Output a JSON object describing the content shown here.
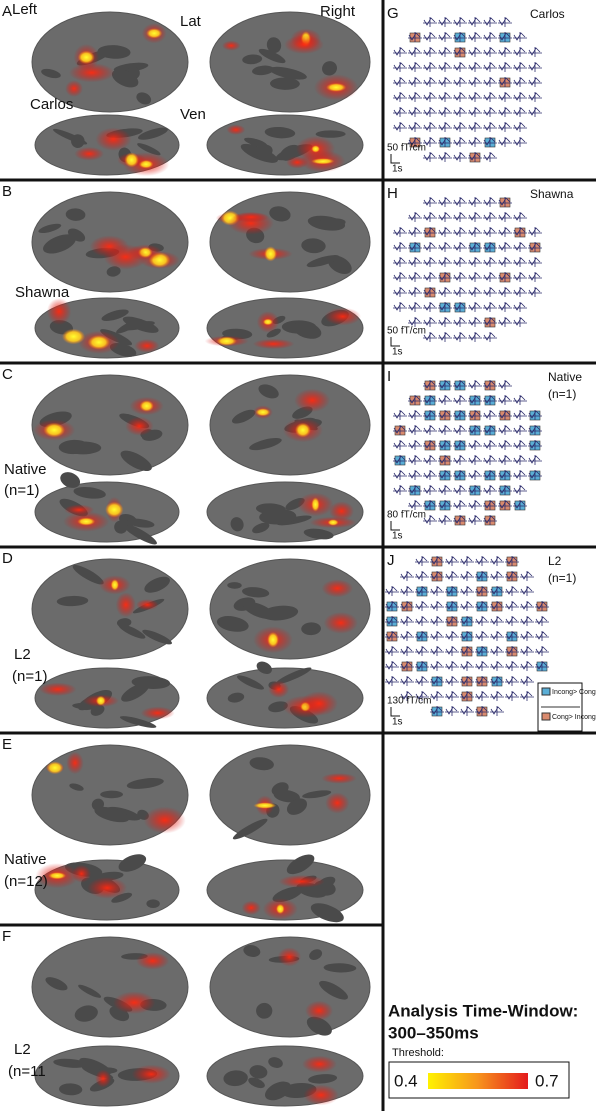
{
  "panels": [
    {
      "letter": "A",
      "labels": [
        "Left",
        "Lat",
        "Right",
        "Carlos",
        "Ven"
      ]
    },
    {
      "letter": "B",
      "labels": [
        "Shawna"
      ]
    },
    {
      "letter": "C",
      "labels": [
        "Native",
        "(n=1)"
      ]
    },
    {
      "letter": "D",
      "labels": [
        "L2",
        "(n=1)"
      ]
    },
    {
      "letter": "E",
      "labels": [
        "Native",
        "(n=12)"
      ]
    },
    {
      "letter": "F",
      "labels": [
        "L2",
        "(n=11"
      ]
    }
  ],
  "sensor_panels": [
    {
      "letter": "G",
      "labels": [
        "Carlos"
      ],
      "scale": "50 fT/cm",
      "time": "1s"
    },
    {
      "letter": "H",
      "labels": [
        "Shawna"
      ],
      "scale": "50 fT/cm",
      "time": "1s"
    },
    {
      "letter": "I",
      "labels": [
        "Native",
        "(n=1)"
      ],
      "scale": "80 fT/cm",
      "time": "1s"
    },
    {
      "letter": "J",
      "labels": [
        "L2",
        "(n=1)"
      ],
      "scale": "130 fT/cm",
      "time": "1s"
    }
  ],
  "legend": {
    "incong": "Incong> Cong",
    "cong": "Cong> Incong"
  },
  "time_window": {
    "title": "Analysis Time-Window:",
    "range": "300–350ms",
    "threshold_label": "Threshold:",
    "min": 0.4,
    "max": 0.7
  }
}
